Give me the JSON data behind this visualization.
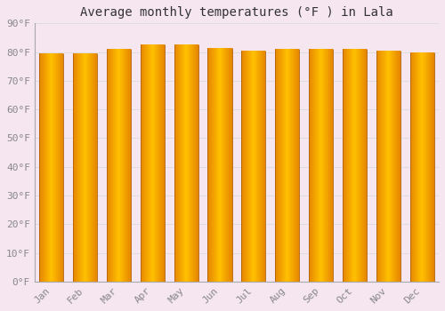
{
  "title": "Average monthly temperatures (°F ) in Lala",
  "months": [
    "Jan",
    "Feb",
    "Mar",
    "Apr",
    "May",
    "Jun",
    "Jul",
    "Aug",
    "Sep",
    "Oct",
    "Nov",
    "Dec"
  ],
  "values": [
    79.5,
    79.5,
    81.0,
    82.5,
    82.5,
    81.5,
    80.5,
    81.0,
    81.0,
    81.0,
    80.5,
    80.0
  ],
  "ylim": [
    0,
    90
  ],
  "yticks": [
    0,
    10,
    20,
    30,
    40,
    50,
    60,
    70,
    80,
    90
  ],
  "bar_color_center": "#FFB300",
  "bar_color_edge": "#E07800",
  "background_color": "#F5E6F0",
  "grid_color": "#DDDDDD",
  "title_fontsize": 10,
  "tick_fontsize": 8,
  "title_font": "monospace",
  "tick_font": "monospace",
  "tick_color": "#888888",
  "spine_color": "#AAAAAA"
}
